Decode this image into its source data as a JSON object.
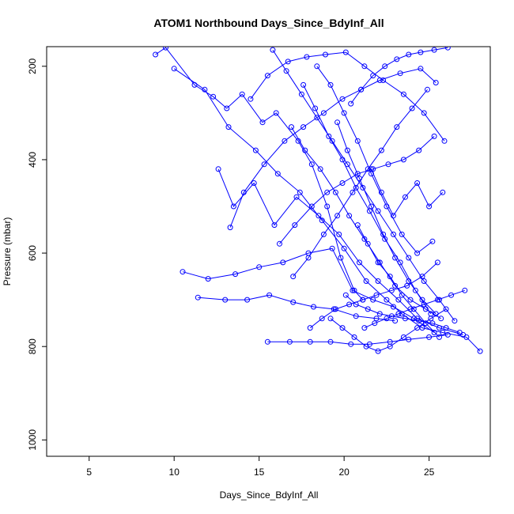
{
  "chart_data": {
    "type": "line",
    "title": "ATOM1 Northbound Days_Since_BdyInf_All",
    "xlabel": "Days_Since_BdyInf_All",
    "ylabel": "Pressure (mbar)",
    "xlim": [
      2.5,
      28.6
    ],
    "ylim": [
      1035,
      158
    ],
    "y_reversed": true,
    "xticks": [
      5,
      10,
      15,
      20,
      25
    ],
    "yticks": [
      200,
      400,
      600,
      800,
      1000
    ],
    "grid": false,
    "legend": "none",
    "marker": "open-circle",
    "color": "#0000ff",
    "series": [
      {
        "x": [
          8.9,
          9.5,
          11.2,
          12.3,
          13.1,
          14.0,
          15.2,
          16.0,
          17.3,
          18.1,
          19.0,
          19.8,
          20.6,
          21.1
        ],
        "y": [
          175,
          160,
          240,
          265,
          290,
          260,
          320,
          300,
          360,
          410,
          500,
          610,
          680,
          700
        ]
      },
      {
        "x": [
          10.0,
          11.8,
          13.2,
          14.8,
          16.1,
          17.4,
          18.7,
          20.0,
          21.3,
          22.5,
          23.4,
          24.6,
          25.8,
          27.2,
          28.0
        ],
        "y": [
          205,
          250,
          330,
          380,
          430,
          470,
          530,
          590,
          660,
          700,
          730,
          760,
          770,
          780,
          810
        ]
      },
      {
        "x": [
          10.5,
          12.0,
          13.6,
          15.0,
          16.4,
          17.9,
          19.3,
          20.5,
          21.7,
          22.9,
          24.1,
          25.3
        ],
        "y": [
          640,
          655,
          645,
          630,
          620,
          600,
          590,
          680,
          700,
          715,
          740,
          770
        ]
      },
      {
        "x": [
          11.4,
          13.0,
          14.3,
          15.6,
          17.0,
          18.2,
          19.4,
          20.7,
          21.9,
          23.0
        ],
        "y": [
          695,
          700,
          700,
          690,
          705,
          715,
          720,
          735,
          740,
          745
        ]
      },
      {
        "x": [
          12.6,
          13.5,
          14.7,
          15.9,
          17.2,
          18.5,
          19.7,
          20.9,
          22.0,
          23.2,
          24.3,
          25.6,
          27.0
        ],
        "y": [
          420,
          500,
          450,
          540,
          480,
          520,
          560,
          620,
          660,
          700,
          740,
          760,
          775
        ]
      },
      {
        "x": [
          13.3,
          14.1,
          15.3,
          16.5,
          17.6,
          18.8,
          19.9,
          21.0,
          22.1,
          23.3,
          24.5,
          25.4
        ],
        "y": [
          545,
          470,
          410,
          360,
          330,
          300,
          270,
          250,
          230,
          215,
          205,
          235
        ]
      },
      {
        "x": [
          14.5,
          15.5,
          16.7,
          17.8,
          18.9,
          20.1,
          21.2,
          22.3,
          23.5,
          24.7,
          25.9
        ],
        "y": [
          270,
          220,
          190,
          180,
          175,
          170,
          200,
          230,
          260,
          300,
          360
        ]
      },
      {
        "x": [
          15.5,
          16.8,
          18.0,
          19.2,
          20.4,
          21.5,
          22.7,
          23.8,
          25.0,
          26.1
        ],
        "y": [
          790,
          790,
          790,
          790,
          795,
          795,
          790,
          785,
          780,
          775
        ]
      },
      {
        "x": [
          15.8,
          16.6,
          17.5,
          18.4,
          19.3,
          20.2,
          21.1,
          22.0,
          22.9,
          23.8,
          24.7,
          25.6,
          26.5
        ],
        "y": [
          165,
          210,
          260,
          310,
          360,
          410,
          460,
          510,
          560,
          610,
          660,
          700,
          745
        ]
      },
      {
        "x": [
          16.2,
          17.1,
          18.1,
          19.0,
          19.9,
          20.8,
          21.7,
          22.6,
          23.5,
          24.4,
          25.3
        ],
        "y": [
          580,
          540,
          500,
          470,
          450,
          430,
          420,
          410,
          400,
          380,
          350
        ]
      },
      {
        "x": [
          16.9,
          17.7,
          18.6,
          19.5,
          20.3,
          21.2,
          22.1,
          23.0,
          23.9,
          24.8,
          25.7
        ],
        "y": [
          330,
          380,
          420,
          470,
          520,
          570,
          620,
          670,
          700,
          720,
          740
        ]
      },
      {
        "x": [
          17.0,
          17.9,
          18.8,
          19.6,
          20.5,
          21.4,
          22.2,
          23.1,
          24.0,
          24.9
        ],
        "y": [
          650,
          610,
          560,
          520,
          470,
          420,
          380,
          330,
          290,
          250
        ]
      },
      {
        "x": [
          17.6,
          18.3,
          19.1,
          19.9,
          20.7,
          21.5,
          22.4,
          23.3,
          24.2,
          25.1
        ],
        "y": [
          240,
          290,
          350,
          400,
          460,
          510,
          570,
          620,
          680,
          730
        ]
      },
      {
        "x": [
          18.0,
          18.7,
          19.5,
          20.3,
          21.1,
          21.9,
          22.8,
          23.7,
          24.6,
          25.5
        ],
        "y": [
          760,
          740,
          720,
          710,
          700,
          690,
          680,
          670,
          650,
          620
        ]
      },
      {
        "x": [
          18.4,
          19.2,
          20.0,
          20.8,
          21.6,
          22.5,
          23.4,
          24.3,
          25.2
        ],
        "y": [
          200,
          240,
          300,
          360,
          430,
          500,
          560,
          600,
          575
        ]
      },
      {
        "x": [
          19.2,
          19.9,
          20.6,
          21.3,
          22.0,
          22.7,
          23.5,
          24.3,
          25.1,
          26.0
        ],
        "y": [
          740,
          760,
          780,
          800,
          810,
          800,
          780,
          760,
          740,
          720
        ]
      },
      {
        "x": [
          19.6,
          20.2,
          20.9,
          21.6,
          22.3,
          23.0,
          23.8,
          24.6,
          25.4
        ],
        "y": [
          320,
          380,
          440,
          500,
          560,
          610,
          660,
          700,
          730
        ]
      },
      {
        "x": [
          20.1,
          20.7,
          21.4,
          22.1,
          22.8,
          23.6,
          24.4,
          25.2,
          26.0,
          26.8
        ],
        "y": [
          690,
          710,
          720,
          730,
          735,
          740,
          745,
          750,
          760,
          770
        ]
      },
      {
        "x": [
          20.4,
          21.0,
          21.7,
          22.4,
          23.1,
          23.8,
          24.5,
          25.3,
          26.1
        ],
        "y": [
          280,
          250,
          220,
          200,
          185,
          175,
          170,
          165,
          160
        ]
      },
      {
        "x": [
          20.8,
          21.4,
          22.0,
          22.7,
          23.4,
          24.1,
          24.8,
          25.6
        ],
        "y": [
          540,
          580,
          620,
          650,
          690,
          720,
          750,
          780
        ]
      },
      {
        "x": [
          21.2,
          21.8,
          22.5,
          23.2,
          23.9,
          24.7,
          25.5,
          26.3,
          27.1
        ],
        "y": [
          760,
          750,
          740,
          730,
          720,
          710,
          700,
          690,
          680
        ]
      },
      {
        "x": [
          21.6,
          22.2,
          22.9,
          23.6,
          24.3,
          25.0,
          25.8
        ],
        "y": [
          420,
          470,
          520,
          480,
          450,
          500,
          470
        ]
      }
    ]
  }
}
